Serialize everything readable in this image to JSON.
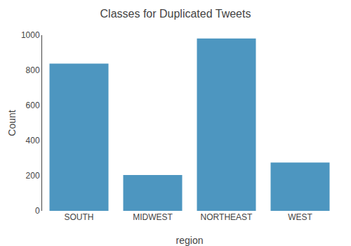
{
  "chart_data": {
    "type": "bar",
    "title": "Classes for Duplicated Tweets",
    "xlabel": "region",
    "ylabel": "Count",
    "categories": [
      "SOUTH",
      "MIDWEST",
      "NORTHEAST",
      "WEST"
    ],
    "values": [
      838,
      204,
      981,
      275
    ],
    "color": "#4d96c0",
    "ylim": [
      0,
      1000
    ],
    "yticks": [
      0,
      200,
      400,
      600,
      800,
      1000
    ],
    "grid": false
  }
}
